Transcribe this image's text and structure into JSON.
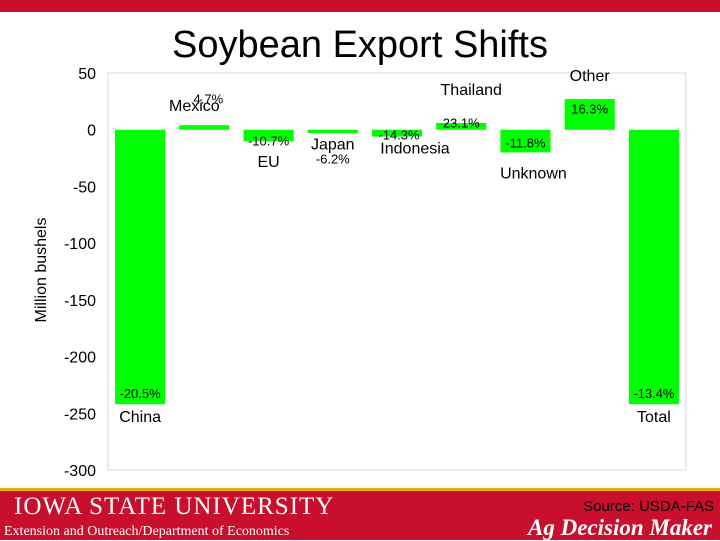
{
  "header": {
    "title": "Soybean Export Shifts"
  },
  "chart_data": {
    "type": "bar",
    "ylabel": "Million bushels",
    "ylim": [
      -300,
      50
    ],
    "yticks": [
      50,
      0,
      -50,
      -100,
      -150,
      -200,
      -250,
      -300
    ],
    "categories": [
      "China",
      "Mexico",
      "EU",
      "Japan",
      "Indonesia",
      "Thailand",
      "Unknown",
      "Other",
      "Total"
    ],
    "values": [
      -242,
      4,
      -10,
      -3,
      -6,
      6,
      -20,
      27,
      -242
    ],
    "pct_labels": [
      "-20.5%",
      "4.7%",
      "-10.7%",
      "-6.2%",
      "-14.3%",
      "23.1%",
      "-11.8%",
      "16.3%",
      "-13.4%"
    ],
    "bar_color": "#00ff00",
    "grid": false
  },
  "footer": {
    "university": "IOWA STATE UNIVERSITY",
    "department": "Extension and Outreach/Department of Economics",
    "brand": "Ag Decision Maker",
    "source": "Source: USDA-FAS"
  },
  "colors": {
    "brand_red": "#c8102e",
    "gold": "#e8b100",
    "bar": "#00ff00"
  }
}
